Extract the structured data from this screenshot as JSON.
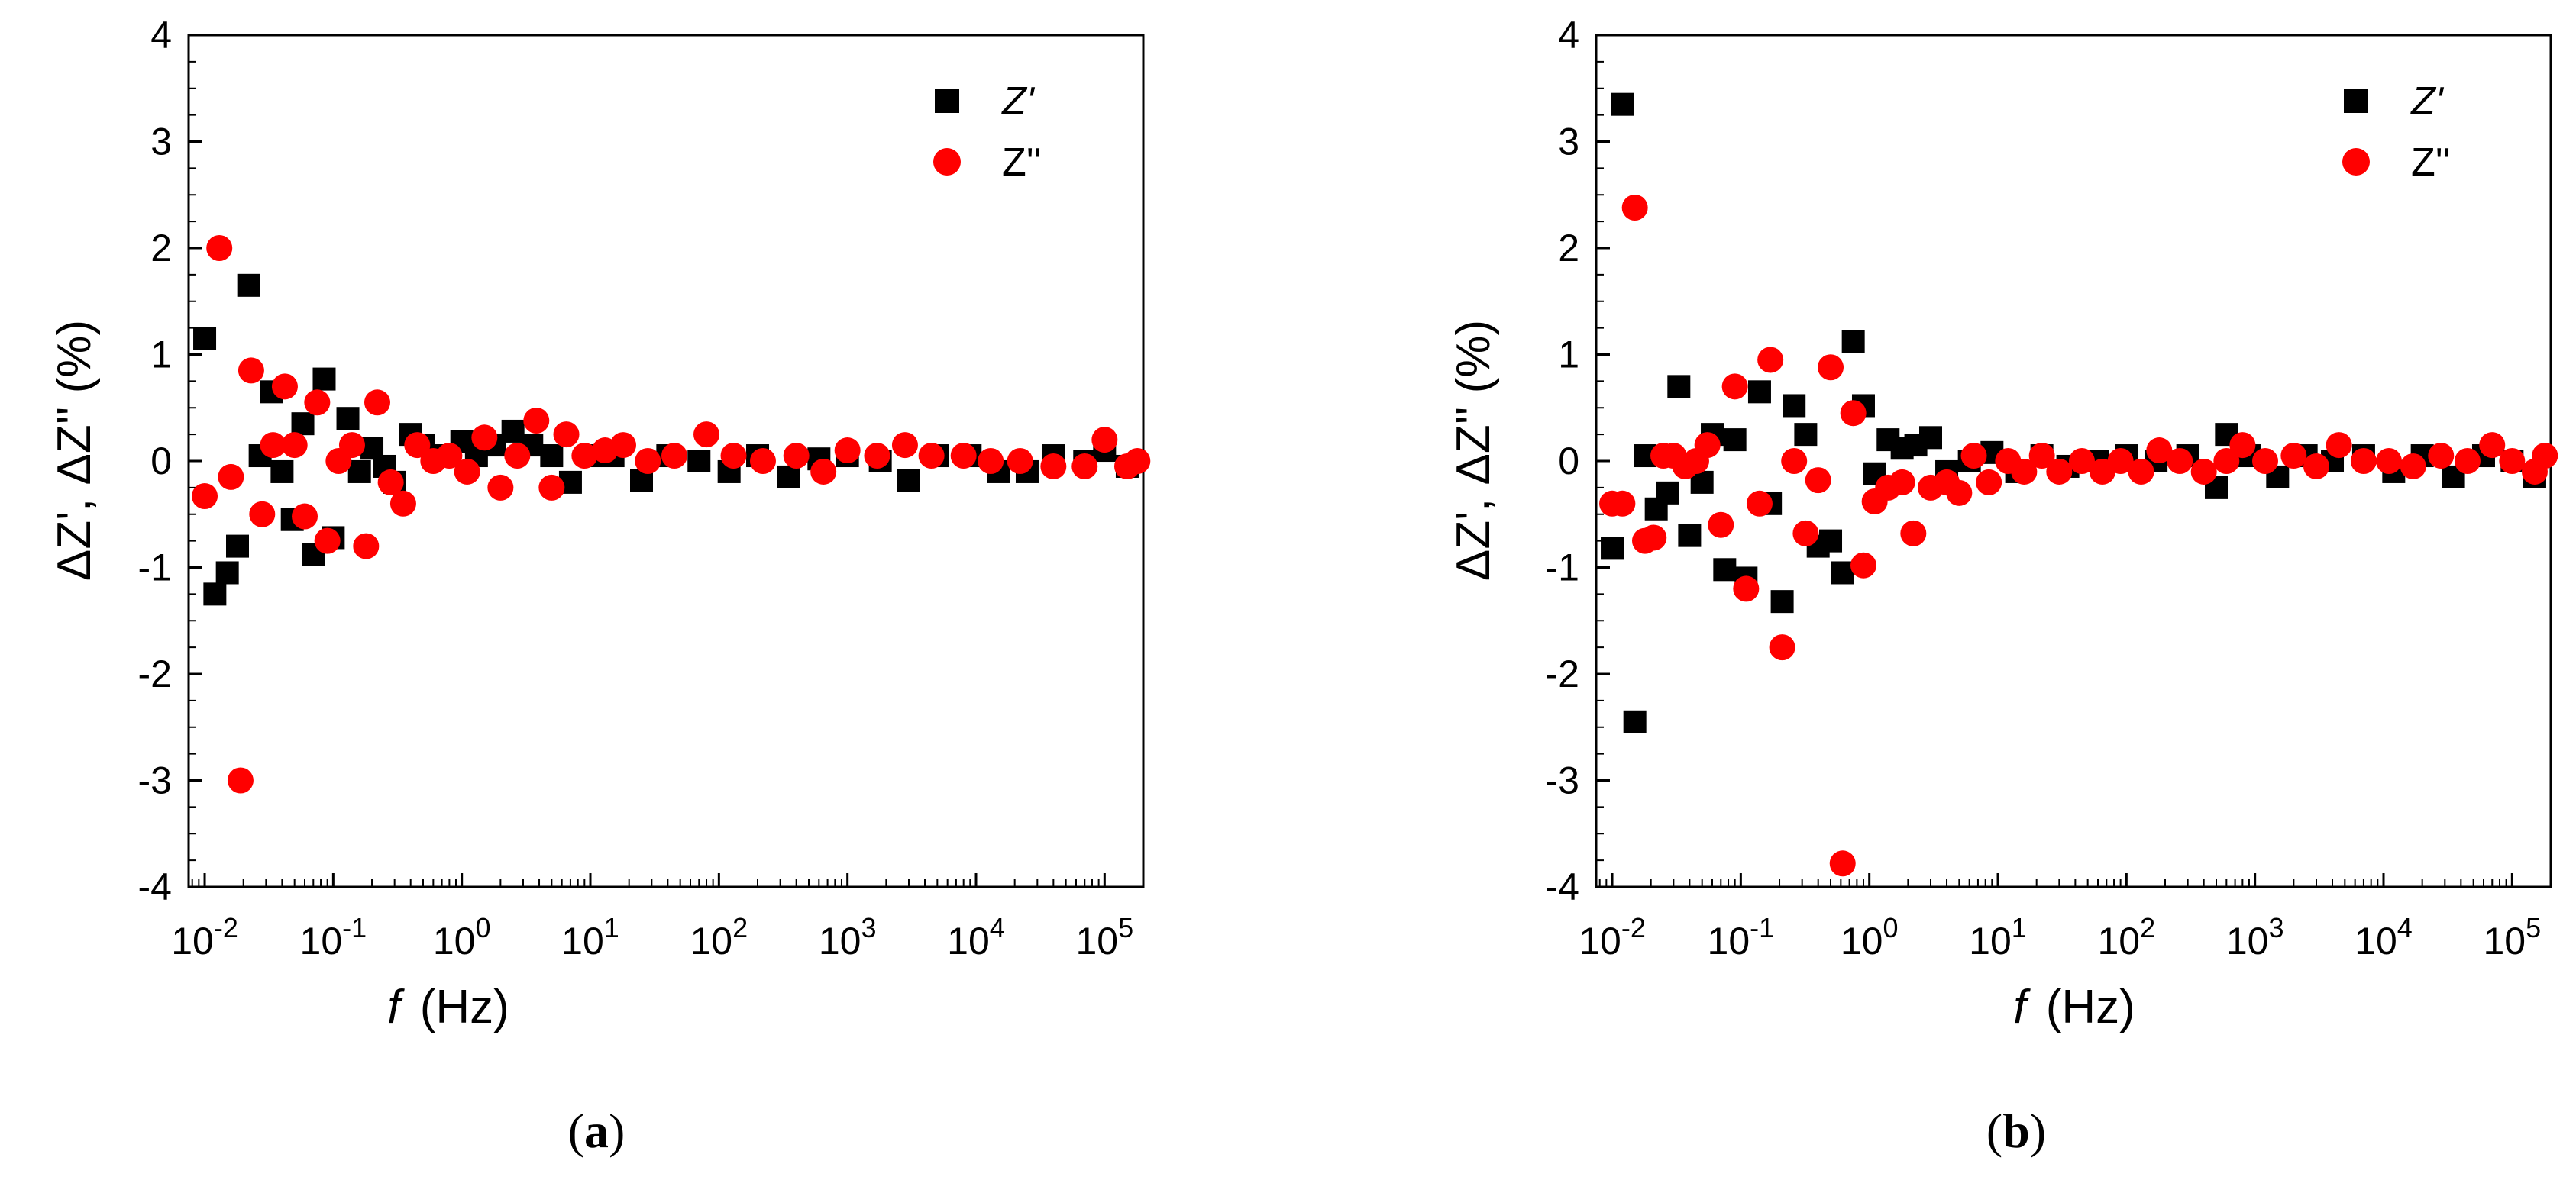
{
  "chart_data": [
    {
      "type": "scatter",
      "panel_label": "a",
      "title": "",
      "xlabel": "f (Hz)",
      "xlabel_var": "f",
      "xlabel_unit": "(Hz)",
      "ylabel": "ΔZ', ΔZ'' (%)",
      "xscale": "log",
      "xlim": [
        0.0075,
        200000
      ],
      "ylim": [
        -4,
        4
      ],
      "yticks": [
        -4,
        -3,
        -2,
        -1,
        0,
        1,
        2,
        3,
        4
      ],
      "xticks": [
        {
          "value": 0.01,
          "base": "10",
          "exp": "-2"
        },
        {
          "value": 0.1,
          "base": "10",
          "exp": "-1"
        },
        {
          "value": 1,
          "base": "10",
          "exp": "0"
        },
        {
          "value": 10,
          "base": "10",
          "exp": "1"
        },
        {
          "value": 100,
          "base": "10",
          "exp": "2"
        },
        {
          "value": 1000,
          "base": "10",
          "exp": "3"
        },
        {
          "value": 10000,
          "base": "10",
          "exp": "4"
        },
        {
          "value": 100000,
          "base": "10",
          "exp": "5"
        }
      ],
      "legend_position": "top-right",
      "series": [
        {
          "name": "Z'",
          "marker": "square",
          "color": "#000000",
          "points": [
            [
              0.01,
              1.15
            ],
            [
              0.012,
              -1.25
            ],
            [
              0.015,
              -1.05
            ],
            [
              0.018,
              -0.8
            ],
            [
              0.022,
              1.65
            ],
            [
              0.027,
              0.05
            ],
            [
              0.033,
              0.65
            ],
            [
              0.04,
              -0.1
            ],
            [
              0.048,
              -0.55
            ],
            [
              0.058,
              0.35
            ],
            [
              0.07,
              -0.88
            ],
            [
              0.085,
              0.77
            ],
            [
              0.1,
              -0.72
            ],
            [
              0.13,
              0.4
            ],
            [
              0.16,
              -0.1
            ],
            [
              0.2,
              0.12
            ],
            [
              0.25,
              -0.05
            ],
            [
              0.3,
              -0.2
            ],
            [
              0.4,
              0.25
            ],
            [
              0.5,
              0.15
            ],
            [
              0.7,
              0.05
            ],
            [
              1.0,
              0.18
            ],
            [
              1.3,
              0.05
            ],
            [
              1.8,
              0.15
            ],
            [
              2.5,
              0.28
            ],
            [
              3.5,
              0.15
            ],
            [
              5.0,
              0.05
            ],
            [
              7.0,
              -0.2
            ],
            [
              10.0,
              0.05
            ],
            [
              15.0,
              0.05
            ],
            [
              25.0,
              -0.18
            ],
            [
              40.0,
              0.05
            ],
            [
              70.0,
              0.0
            ],
            [
              120.0,
              -0.1
            ],
            [
              200.0,
              0.05
            ],
            [
              350.0,
              -0.15
            ],
            [
              600.0,
              0.02
            ],
            [
              1000.0,
              0.05
            ],
            [
              1800.0,
              0.0
            ],
            [
              3000.0,
              -0.18
            ],
            [
              5000.0,
              0.05
            ],
            [
              9000.0,
              0.05
            ],
            [
              15000.0,
              -0.1
            ],
            [
              25000.0,
              -0.1
            ],
            [
              40000.0,
              0.05
            ],
            [
              70000.0,
              0.0
            ],
            [
              100000.0,
              0.1
            ],
            [
              150000.0,
              -0.05
            ]
          ]
        },
        {
          "name": "Z''",
          "marker": "circle",
          "color": "#ff0000",
          "points": [
            [
              0.01,
              -0.33
            ],
            [
              0.013,
              2.0
            ],
            [
              0.016,
              -0.15
            ],
            [
              0.019,
              -3.0
            ],
            [
              0.023,
              0.85
            ],
            [
              0.028,
              -0.5
            ],
            [
              0.034,
              0.15
            ],
            [
              0.042,
              0.7
            ],
            [
              0.05,
              0.15
            ],
            [
              0.06,
              -0.52
            ],
            [
              0.075,
              0.55
            ],
            [
              0.09,
              -0.75
            ],
            [
              0.11,
              0.0
            ],
            [
              0.14,
              0.15
            ],
            [
              0.18,
              -0.8
            ],
            [
              0.22,
              0.55
            ],
            [
              0.28,
              -0.2
            ],
            [
              0.35,
              -0.4
            ],
            [
              0.45,
              0.15
            ],
            [
              0.6,
              0.0
            ],
            [
              0.8,
              0.05
            ],
            [
              1.1,
              -0.1
            ],
            [
              1.5,
              0.22
            ],
            [
              2.0,
              -0.25
            ],
            [
              2.7,
              0.05
            ],
            [
              3.8,
              0.38
            ],
            [
              5.0,
              -0.25
            ],
            [
              6.5,
              0.25
            ],
            [
              9.0,
              0.05
            ],
            [
              13.0,
              0.1
            ],
            [
              18.0,
              0.15
            ],
            [
              28.0,
              0.0
            ],
            [
              45.0,
              0.05
            ],
            [
              80.0,
              0.25
            ],
            [
              130.0,
              0.05
            ],
            [
              220.0,
              0.0
            ],
            [
              400.0,
              0.05
            ],
            [
              650.0,
              -0.1
            ],
            [
              1000.0,
              0.1
            ],
            [
              1700.0,
              0.05
            ],
            [
              2800.0,
              0.15
            ],
            [
              4500.0,
              0.05
            ],
            [
              8000.0,
              0.05
            ],
            [
              13000.0,
              0.0
            ],
            [
              22000.0,
              0.0
            ],
            [
              40000.0,
              -0.05
            ],
            [
              70000.0,
              -0.05
            ],
            [
              100000.0,
              0.2
            ],
            [
              150000.0,
              -0.05
            ],
            [
              180000.0,
              0.0
            ]
          ]
        }
      ]
    },
    {
      "type": "scatter",
      "panel_label": "b",
      "title": "",
      "xlabel": "f (Hz)",
      "xlabel_var": "f",
      "xlabel_unit": "(Hz)",
      "ylabel": "ΔZ', ΔZ'' (%)",
      "xscale": "log",
      "xlim": [
        0.0075,
        200000
      ],
      "ylim": [
        -4,
        4
      ],
      "yticks": [
        -4,
        -3,
        -2,
        -1,
        0,
        1,
        2,
        3,
        4
      ],
      "xticks": [
        {
          "value": 0.01,
          "base": "10",
          "exp": "-2"
        },
        {
          "value": 0.1,
          "base": "10",
          "exp": "-1"
        },
        {
          "value": 1,
          "base": "10",
          "exp": "0"
        },
        {
          "value": 10,
          "base": "10",
          "exp": "1"
        },
        {
          "value": 100,
          "base": "10",
          "exp": "2"
        },
        {
          "value": 1000,
          "base": "10",
          "exp": "3"
        },
        {
          "value": 10000,
          "base": "10",
          "exp": "4"
        },
        {
          "value": 100000,
          "base": "10",
          "exp": "5"
        }
      ],
      "legend_position": "top-right",
      "series": [
        {
          "name": "Z'",
          "marker": "square",
          "color": "#000000",
          "points": [
            [
              0.01,
              -0.82
            ],
            [
              0.012,
              3.35
            ],
            [
              0.015,
              -2.45
            ],
            [
              0.018,
              0.05
            ],
            [
              0.022,
              -0.45
            ],
            [
              0.027,
              -0.3
            ],
            [
              0.033,
              0.7
            ],
            [
              0.04,
              -0.7
            ],
            [
              0.05,
              -0.2
            ],
            [
              0.06,
              0.25
            ],
            [
              0.075,
              -1.02
            ],
            [
              0.09,
              0.2
            ],
            [
              0.11,
              -1.1
            ],
            [
              0.14,
              0.65
            ],
            [
              0.17,
              -0.4
            ],
            [
              0.21,
              -1.32
            ],
            [
              0.26,
              0.52
            ],
            [
              0.32,
              0.25
            ],
            [
              0.4,
              -0.8
            ],
            [
              0.5,
              -0.75
            ],
            [
              0.62,
              -1.05
            ],
            [
              0.75,
              1.12
            ],
            [
              0.9,
              0.52
            ],
            [
              1.1,
              -0.12
            ],
            [
              1.4,
              0.2
            ],
            [
              1.8,
              0.12
            ],
            [
              2.3,
              0.15
            ],
            [
              3.0,
              0.22
            ],
            [
              4.0,
              -0.1
            ],
            [
              6.0,
              0.0
            ],
            [
              9.0,
              0.08
            ],
            [
              14.0,
              -0.1
            ],
            [
              22.0,
              0.05
            ],
            [
              35.0,
              -0.05
            ],
            [
              60.0,
              0.0
            ],
            [
              100.0,
              0.05
            ],
            [
              170.0,
              0.0
            ],
            [
              300.0,
              0.05
            ],
            [
              500.0,
              -0.25
            ],
            [
              600.0,
              0.25
            ],
            [
              900.0,
              0.05
            ],
            [
              1500.0,
              -0.15
            ],
            [
              2500.0,
              0.05
            ],
            [
              4000.0,
              0.0
            ],
            [
              7000.0,
              0.05
            ],
            [
              12000.0,
              -0.1
            ],
            [
              20000.0,
              0.05
            ],
            [
              35000.0,
              -0.15
            ],
            [
              60000.0,
              0.05
            ],
            [
              100000.0,
              0.0
            ],
            [
              150000.0,
              -0.15
            ]
          ]
        },
        {
          "name": "Z''",
          "marker": "circle",
          "color": "#ff0000",
          "points": [
            [
              0.01,
              -0.4
            ],
            [
              0.012,
              -0.4
            ],
            [
              0.015,
              2.38
            ],
            [
              0.018,
              -0.75
            ],
            [
              0.021,
              -0.72
            ],
            [
              0.025,
              0.05
            ],
            [
              0.03,
              0.05
            ],
            [
              0.037,
              -0.05
            ],
            [
              0.045,
              0.0
            ],
            [
              0.055,
              0.15
            ],
            [
              0.07,
              -0.6
            ],
            [
              0.09,
              0.7
            ],
            [
              0.11,
              -1.2
            ],
            [
              0.14,
              -0.4
            ],
            [
              0.17,
              0.95
            ],
            [
              0.21,
              -1.75
            ],
            [
              0.26,
              0.0
            ],
            [
              0.32,
              -0.68
            ],
            [
              0.4,
              -0.18
            ],
            [
              0.5,
              0.88
            ],
            [
              0.62,
              -3.78
            ],
            [
              0.75,
              0.45
            ],
            [
              0.9,
              -0.98
            ],
            [
              1.1,
              -0.38
            ],
            [
              1.4,
              -0.25
            ],
            [
              1.8,
              -0.2
            ],
            [
              2.2,
              -0.68
            ],
            [
              3.0,
              -0.25
            ],
            [
              4.0,
              -0.2
            ],
            [
              5.0,
              -0.3
            ],
            [
              6.5,
              0.05
            ],
            [
              8.5,
              -0.2
            ],
            [
              12.0,
              0.0
            ],
            [
              16.0,
              -0.1
            ],
            [
              22.0,
              0.05
            ],
            [
              30.0,
              -0.1
            ],
            [
              45.0,
              0.0
            ],
            [
              65.0,
              -0.1
            ],
            [
              90.0,
              0.0
            ],
            [
              130.0,
              -0.1
            ],
            [
              180.0,
              0.1
            ],
            [
              260.0,
              0.0
            ],
            [
              400.0,
              -0.1
            ],
            [
              600.0,
              0.0
            ],
            [
              800.0,
              0.15
            ],
            [
              1200.0,
              0.0
            ],
            [
              2000.0,
              0.05
            ],
            [
              3000.0,
              -0.05
            ],
            [
              4500.0,
              0.15
            ],
            [
              7000.0,
              0.0
            ],
            [
              11000.0,
              0.0
            ],
            [
              17000.0,
              -0.05
            ],
            [
              28000.0,
              0.05
            ],
            [
              45000.0,
              0.0
            ],
            [
              70000.0,
              0.15
            ],
            [
              100000.0,
              0.0
            ],
            [
              150000.0,
              -0.1
            ],
            [
              180000.0,
              0.05
            ]
          ]
        }
      ]
    }
  ]
}
